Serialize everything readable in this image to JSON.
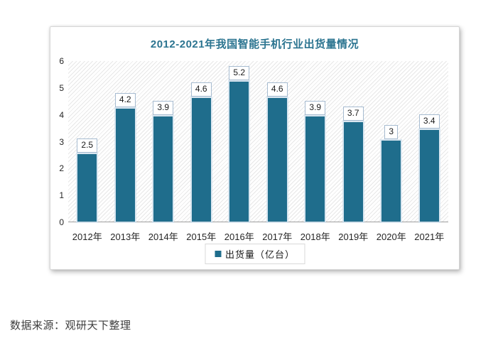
{
  "source_note": "数据来源：观研天下整理",
  "chart_data": {
    "type": "bar",
    "title": "2012-2021年我国智能手机行业出货量情况",
    "categories": [
      "2012年",
      "2013年",
      "2014年",
      "2015年",
      "2016年",
      "2017年",
      "2018年",
      "2019年",
      "2020年",
      "2021年"
    ],
    "values": [
      2.5,
      4.2,
      3.9,
      4.6,
      5.2,
      4.6,
      3.9,
      3.7,
      3,
      3.4
    ],
    "series_name": "出货量（亿台）",
    "legend": [
      "出货量（亿台）"
    ],
    "legend_position": "bottom",
    "ylim": [
      0,
      6
    ],
    "yticks": [
      0,
      1,
      2,
      3,
      4,
      5,
      6
    ],
    "grid": false,
    "data_labels": true,
    "plot_background": "diagonal-hatch",
    "colors": {
      "bar": "#1f6d8c",
      "title": "#2b7490",
      "axis_text": "#262626",
      "baseline": "#9e9e9e",
      "value_box_border": "#a6bbd0",
      "legend_border": "#d9d9d9"
    }
  }
}
